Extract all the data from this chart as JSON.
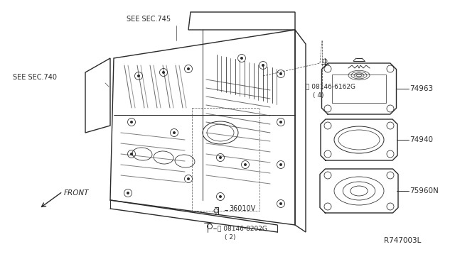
{
  "bg_color": "#ffffff",
  "line_color": "#2a2a2a",
  "labels": {
    "see_sec_745": "SEE SEC.745",
    "see_sec_740": "SEE SEC.740",
    "part_36010V": "36010V",
    "part_08146_8202G": "␢ 08146-8202G\n( 2)",
    "part_08146_6162G": "␢ 08146-6162G\n( 4)",
    "part_74963": "74963",
    "part_74940": "74940",
    "part_75960N": "75960N",
    "ref_code": "R747003L",
    "front_label": "FRONT"
  }
}
